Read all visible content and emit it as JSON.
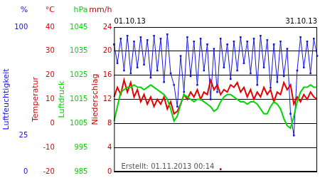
{
  "chart_data": {
    "type": "line",
    "categories": [
      "01.10.13",
      null,
      null,
      null,
      null,
      null,
      null,
      null,
      null,
      null,
      null,
      null,
      null,
      null,
      null,
      null,
      null,
      null,
      null,
      null,
      null,
      null,
      null,
      null,
      null,
      null,
      null,
      null,
      null,
      null,
      null,
      null,
      null,
      null,
      null,
      null,
      null,
      null,
      null,
      null,
      null,
      null,
      null,
      null,
      null,
      null,
      null,
      null,
      null,
      null,
      null,
      null,
      null,
      null,
      null,
      null,
      null,
      null,
      null,
      null,
      null,
      "31.10.13"
    ],
    "grid": true,
    "annotation": "Erstellt: 01.11.2013 00:14",
    "series": [
      {
        "name": "Luftfeuchtigkeit",
        "unit": "%",
        "color": "#1414e6",
        "marker": "square",
        "ylim": [
          0,
          100
        ],
        "yticks": [
          0,
          25,
          100
        ],
        "values": [
          88,
          75,
          92,
          70,
          94,
          68,
          90,
          72,
          93,
          74,
          91,
          65,
          94,
          70,
          92,
          62,
          95,
          68,
          60,
          45,
          80,
          55,
          93,
          66,
          90,
          60,
          92,
          70,
          88,
          50,
          85,
          55,
          92,
          72,
          88,
          64,
          90,
          70,
          93,
          75,
          90,
          68,
          92,
          60,
          94,
          72,
          91,
          58,
          88,
          62,
          90,
          66,
          85,
          40,
          25,
          70,
          93,
          72,
          90,
          68,
          92,
          80
        ]
      },
      {
        "name": "Temperatur",
        "unit": "°C",
        "color": "#e60000",
        "marker": "none",
        "ylim": [
          -20,
          40
        ],
        "yticks": [
          -20,
          -10,
          0,
          10,
          20,
          30,
          40
        ],
        "values": [
          11,
          15,
          12,
          18,
          13,
          17,
          11,
          14,
          9,
          12,
          8,
          11,
          7,
          10,
          8,
          11,
          6,
          9,
          4,
          5,
          8,
          12,
          10,
          13,
          11,
          14,
          10,
          13,
          12,
          18,
          14,
          16,
          12,
          14,
          13,
          16,
          15,
          17,
          13,
          15,
          11,
          14,
          10,
          13,
          11,
          15,
          12,
          14,
          9,
          13,
          12,
          17,
          14,
          16,
          8,
          11,
          9,
          12,
          10,
          13,
          11,
          10
        ]
      },
      {
        "name": "Luftdruck",
        "unit": "hPa",
        "color": "#00d600",
        "marker": "none",
        "ylim": [
          985,
          1045
        ],
        "yticks": [
          985,
          995,
          1005,
          1015,
          1025,
          1035,
          1045
        ],
        "values": [
          1006,
          1012,
          1018,
          1019,
          1020,
          1020,
          1021,
          1020,
          1020,
          1019,
          1020,
          1021,
          1020,
          1019,
          1018,
          1017,
          1015,
          1011,
          1006,
          1008,
          1013,
          1017,
          1016,
          1015,
          1014,
          1015,
          1015,
          1014,
          1013,
          1012,
          1010,
          1011,
          1014,
          1016,
          1017,
          1017,
          1016,
          1015,
          1014,
          1014,
          1013,
          1014,
          1014,
          1013,
          1011,
          1009,
          1009,
          1012,
          1014,
          1013,
          1011,
          1007,
          1004,
          1003,
          1008,
          1014,
          1018,
          1020,
          1020,
          1021,
          1020,
          1020
        ]
      },
      {
        "name": "Niederschlag",
        "unit": "mm/h",
        "color": "#cc0000",
        "marker": "square",
        "ylim": [
          0,
          24
        ],
        "yticks": [
          0,
          4,
          8,
          12,
          16,
          20,
          24
        ],
        "values": [
          null,
          null,
          null,
          null,
          null,
          null,
          null,
          null,
          null,
          null,
          null,
          null,
          null,
          null,
          null,
          null,
          null,
          null,
          null,
          null,
          null,
          null,
          null,
          null,
          null,
          null,
          null,
          null,
          null,
          null,
          null,
          null,
          0.4,
          null,
          null,
          null,
          null,
          null,
          null,
          null,
          null,
          null,
          null,
          null,
          null,
          null,
          null,
          null,
          null,
          null,
          null,
          null,
          null,
          null,
          null,
          null,
          null,
          null,
          null,
          null,
          null,
          null
        ]
      }
    ]
  }
}
